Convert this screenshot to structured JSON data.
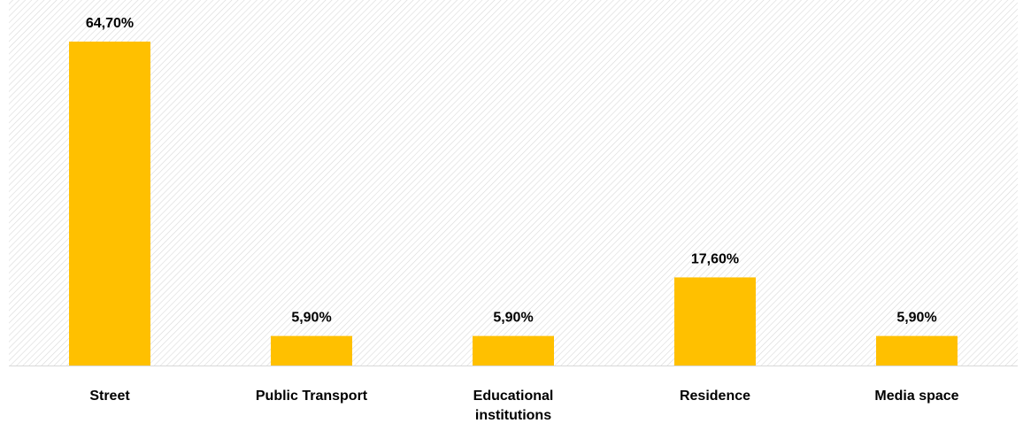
{
  "chart_data": {
    "type": "bar",
    "categories": [
      "Street",
      "Public Transport",
      "Educational institutions",
      "Residence",
      "Media space"
    ],
    "values": [
      64.7,
      5.9,
      5.9,
      17.6,
      5.9
    ],
    "value_labels": [
      "64,70%",
      "5,90%",
      "5,90%",
      "17,60%",
      "5,90%"
    ],
    "color": "#ffc000"
  }
}
